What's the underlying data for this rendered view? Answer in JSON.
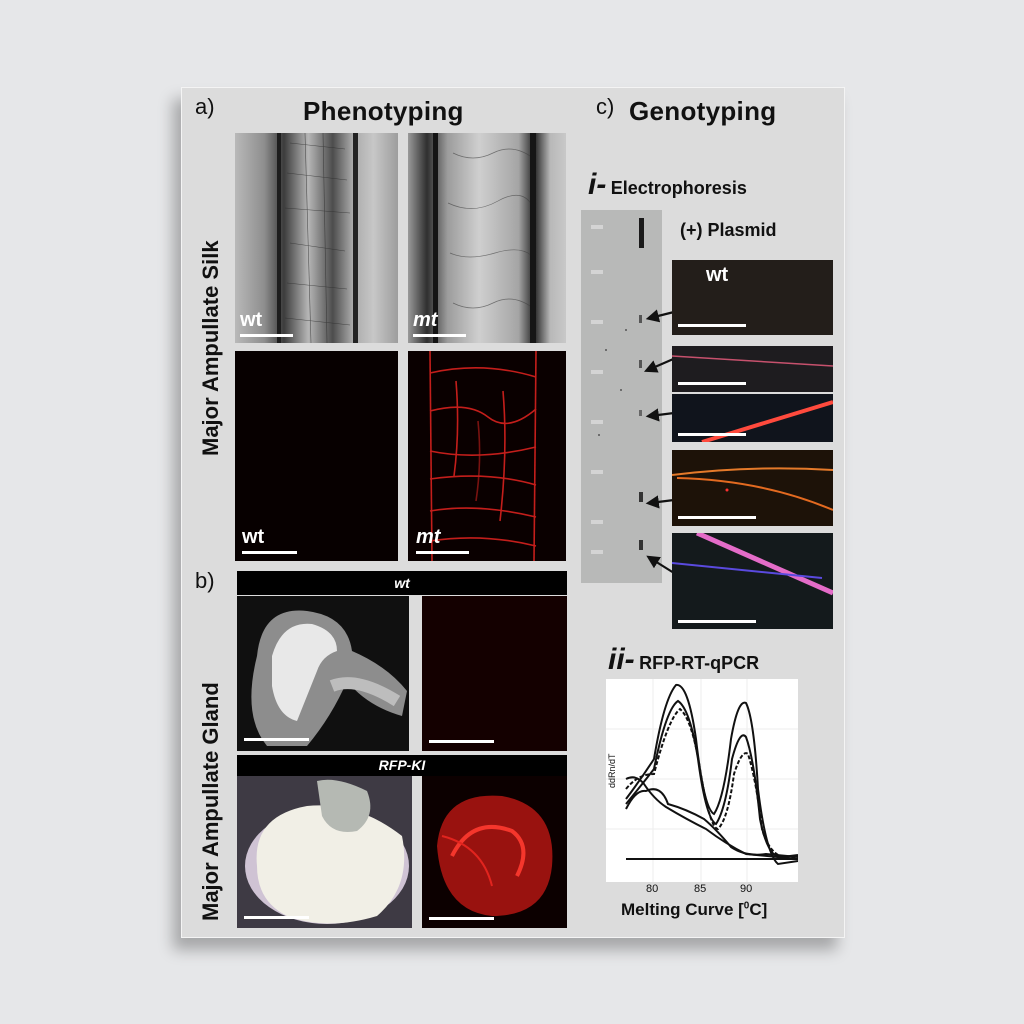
{
  "panel_a": {
    "letter": "a)",
    "title": "Phenotyping",
    "row_label": "Major Ampullate Silk",
    "images": [
      {
        "label": "wt",
        "kind": "brightfield"
      },
      {
        "label": "mt",
        "kind": "brightfield"
      },
      {
        "label": "wt",
        "kind": "fluorescence-empty"
      },
      {
        "label": "mt",
        "kind": "fluorescence-red"
      }
    ]
  },
  "panel_b": {
    "letter": "b)",
    "row_label": "Major Ampullate Gland",
    "strip_wt": "wt",
    "strip_ki": "RFP-KI"
  },
  "panel_c": {
    "letter": "c)",
    "title": "Genotyping",
    "i_roman": "i-",
    "i_label": "Electrophoresis",
    "plasmid_label": "(+) Plasmid",
    "wt_label": "wt",
    "ii_roman": "ii-",
    "ii_label": "RFP-RT-qPCR",
    "chart": {
      "ylabel": "ddRn/dT",
      "xticks": [
        "80",
        "85",
        "90"
      ],
      "xlabel_pre": "Melting Curve [",
      "xlabel_sup": "0",
      "xlabel_post": "C]"
    }
  },
  "colors": {
    "background": "#e6e7e9",
    "card": "#dcdcdc",
    "rfp_red": "#e0201c",
    "gel": "#b8b9b8"
  }
}
